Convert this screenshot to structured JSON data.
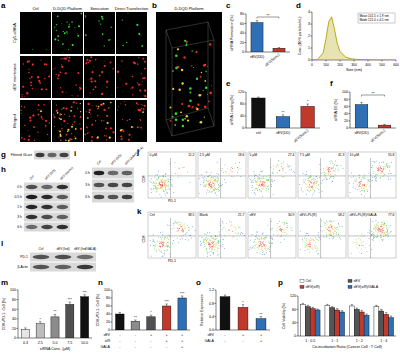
{
  "chart_data": [
    {
      "type": "bar",
      "panel_label": "c",
      "ylabel": "siRNA Permeation (%)",
      "categories": [
        "sEV(DD)",
        "sEV(Sonic)"
      ],
      "values": [
        62,
        8
      ],
      "errors": [
        4,
        1.5
      ],
      "colors": [
        "#2f6fb5",
        "#c0392b"
      ],
      "ylim": [
        0,
        80
      ],
      "yticks": [
        0,
        20,
        40,
        60,
        80
      ],
      "annotations": [
        "**"
      ]
    },
    {
      "type": "line",
      "panel_label": "d",
      "xlabel": "Size (nm)",
      "ylabel": "Conc. (10^6 particles/mL)",
      "x": [
        0,
        40,
        80,
        100,
        120,
        140,
        160,
        180,
        200,
        240,
        280,
        320,
        400,
        500,
        600
      ],
      "values": [
        0,
        0.05,
        0.6,
        1.8,
        3.2,
        3.6,
        2.6,
        1.4,
        0.7,
        0.25,
        0.1,
        0.05,
        0.02,
        0,
        0
      ],
      "color": "#b3a100",
      "xlim": [
        0,
        600
      ],
      "xticks": [
        0,
        100,
        200,
        300,
        400,
        500,
        600
      ],
      "ylim": [
        0,
        4
      ],
      "yticks": [
        0,
        1,
        2,
        3,
        4
      ],
      "annotations": [
        "Mean 141.5 ± 1.9 nm",
        "Mode 122.4 ± 4.5 nm"
      ]
    },
    {
      "type": "bar",
      "panel_label": "e",
      "ylabel": "siRNA Loading (%)",
      "categories": [
        "ctrl",
        "sEV(DD)",
        "sEV(Sonic)"
      ],
      "values": [
        100,
        38,
        72
      ],
      "errors": [
        3,
        6,
        8
      ],
      "colors": [
        "#111111",
        "#2f6fb5",
        "#c0392b"
      ],
      "ylim": [
        0,
        120
      ],
      "yticks": [
        0,
        40,
        80,
        120
      ],
      "annotations": [
        "**",
        "*"
      ]
    },
    {
      "type": "bar",
      "panel_label": "f",
      "ylabel": "siRNA EE (%)",
      "categories": [
        "sEV(DD)",
        "sEV(Sonic)"
      ],
      "values": [
        65,
        8
      ],
      "errors": [
        6,
        2
      ],
      "colors": [
        "#2f6fb5",
        "#c0392b"
      ],
      "ylim": [
        0,
        100
      ],
      "yticks": [
        0,
        20,
        40,
        60,
        80,
        100
      ],
      "annotations": [
        "**"
      ]
    },
    {
      "type": "bar",
      "panel_label": "m",
      "xlabel": "siRNA Conc. (µM)",
      "ylabel": "CD8+PD-1- Cell (%)",
      "categories": [
        "0.3",
        "2.5",
        "5.0",
        "7.5",
        "10.0"
      ],
      "values": [
        18,
        30,
        44,
        70,
        86
      ],
      "errors": [
        3,
        4,
        5,
        5,
        4
      ],
      "colors": [
        "#e6e6e6",
        "#bdbdbd",
        "#8c8c8c",
        "#505050",
        "#111111"
      ],
      "ylim": [
        0,
        100
      ],
      "yticks": [
        0,
        20,
        40,
        60,
        80,
        100
      ],
      "annotations": [
        "*",
        "**",
        "***",
        "***"
      ]
    },
    {
      "type": "bar",
      "panel_label": "n",
      "ylabel": "CD8+PD-1- Cell (%)",
      "categories": [
        null,
        null,
        null,
        null,
        null
      ],
      "sign_rows": [
        {
          "name": "sEV",
          "signs": [
            "-",
            "-",
            "+",
            "+",
            "+"
          ]
        },
        {
          "name": "siR",
          "signs": [
            "-",
            "-",
            "-",
            "+",
            "+"
          ]
        },
        {
          "name": "GALA",
          "signs": [
            "-",
            "-",
            "-",
            "-",
            "+"
          ]
        }
      ],
      "values": [
        40,
        22,
        33,
        60,
        80
      ],
      "errors": [
        4,
        3,
        4,
        5,
        5
      ],
      "colors": [
        "#111111",
        "#8c8c8c",
        "#505050",
        "#c0392b",
        "#2f6fb5"
      ],
      "ylim": [
        0,
        100
      ],
      "yticks": [
        0,
        20,
        40,
        60,
        80,
        100
      ],
      "annotations": [
        "**",
        "*",
        "***",
        "***"
      ]
    },
    {
      "type": "bar",
      "panel_label": "o",
      "ylabel": "Relative Expression",
      "categories": [
        null,
        null,
        null
      ],
      "sign_rows": [
        {
          "name": "sEV",
          "signs": [
            "-",
            "+",
            "+"
          ]
        },
        {
          "name": "GALA",
          "signs": [
            "-",
            "-",
            "+"
          ]
        }
      ],
      "values": [
        1,
        0.68,
        0.34
      ],
      "errors": [
        0.05,
        0.08,
        0.06
      ],
      "colors": [
        "#111111",
        "#c0392b",
        "#2f6fb5"
      ],
      "ylim": [
        0,
        1.2
      ],
      "yticks": [
        {
          "value": 0,
          "label": "0.0"
        },
        0.4,
        0.8,
        1.2
      ],
      "annotations": [
        "*",
        "**"
      ]
    },
    {
      "type": "bar",
      "panel_label": "p",
      "xlabel": "Co-incubation Ratio (Cancer Cell : T Cell)",
      "ylabel": "Cell Viability (%)",
      "categories": [
        "1 : 0.5",
        "1 : 1",
        "1 : 2",
        "1 : 4"
      ],
      "series": [
        {
          "name": "Ctrl",
          "color": "#ffffff",
          "values": [
            95,
            92,
            90,
            88
          ],
          "errors": [
            3,
            3,
            4,
            4
          ]
        },
        {
          "name": "sEV",
          "color": "#555555",
          "values": [
            88,
            85,
            80,
            75
          ],
          "errors": [
            4,
            3,
            4,
            5
          ]
        },
        {
          "name": "sEV(siR)",
          "color": "#c0392b",
          "values": [
            82,
            78,
            72,
            65
          ],
          "errors": [
            4,
            4,
            5,
            5
          ]
        },
        {
          "name": "sEV(siR)/GALA",
          "color": "#2f6fb5",
          "values": [
            78,
            72,
            62,
            55
          ],
          "errors": [
            3,
            4,
            4,
            5
          ]
        }
      ],
      "ylim": [
        0,
        120
      ],
      "yticks": [
        0,
        40,
        80,
        120
      ],
      "legend": "top"
    }
  ],
  "figure": {
    "a": {
      "panel_label": "a",
      "columns": [
        "Ctrl",
        "D-DQD Platform",
        "Sonication",
        "Direct Transfection"
      ],
      "rows": [
        "Cy5-siRNA",
        "sEV membrane",
        "Merged"
      ]
    },
    "b": {
      "panel_label": "b",
      "title": "D-DQD Platform"
    },
    "g": {
      "panel_label": "g",
      "rows": [
        "Filtered GLast"
      ]
    },
    "h": {
      "panel_label": "h",
      "columns": [
        "Ctrl",
        "sEV (DD)",
        "sEV (Sonic)"
      ],
      "rows": [
        "0 h",
        "0.5 h",
        "1 h",
        "3 h",
        "6 h"
      ]
    },
    "i": {
      "panel_label": "i",
      "columns": [
        "Ctrl",
        "sEV (DD)",
        "sEV (AAV/GALA)"
      ],
      "rows": [
        "0 h",
        "3 h",
        "6 h"
      ]
    },
    "j": {
      "panel_label": "j",
      "xlabel": "PD-1",
      "ylabel": "CD8",
      "plots": [
        {
          "title": "0 µM",
          "percent": 11.2
        },
        {
          "title": "2.5 µM",
          "percent": 18.6
        },
        {
          "title": "5 µM",
          "percent": 27.4
        },
        {
          "title": "7.5 µM",
          "percent": 41.3
        },
        {
          "title": "10 µM",
          "percent": 55.8
        }
      ]
    },
    "k": {
      "panel_label": "k",
      "xlabel": "PD-1",
      "ylabel": "CD8",
      "plots": [
        {
          "title": "Ctrl",
          "percent": 38.5
        },
        {
          "title": "Blank",
          "percent": 21.7
        },
        {
          "title": "sEV",
          "percent": 30.9
        },
        {
          "title": "sEV+PL(R)",
          "percent": 58.2
        },
        {
          "title": "sEV+PL(R)/GALA",
          "percent": 77.6
        }
      ]
    },
    "l": {
      "panel_label": "l",
      "columns": [
        "Ctrl",
        "sEV (Ind)",
        "sEV (Ind/GALA)"
      ],
      "rows": [
        "PD-1",
        "β-Actin"
      ]
    }
  }
}
